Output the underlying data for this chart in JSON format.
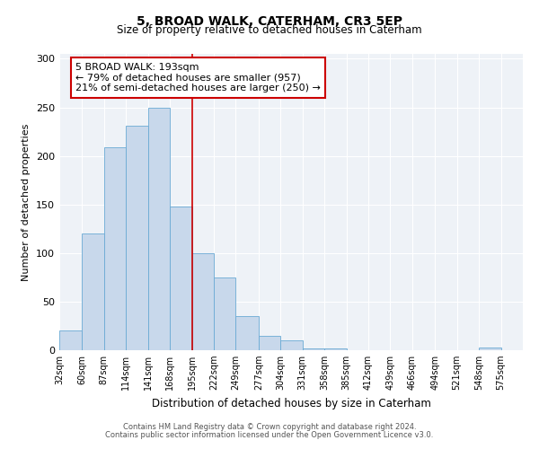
{
  "title": "5, BROAD WALK, CATERHAM, CR3 5EP",
  "subtitle": "Size of property relative to detached houses in Caterham",
  "xlabel": "Distribution of detached houses by size in Caterham",
  "ylabel": "Number of detached properties",
  "bin_labels": [
    "32sqm",
    "60sqm",
    "87sqm",
    "114sqm",
    "141sqm",
    "168sqm",
    "195sqm",
    "222sqm",
    "249sqm",
    "277sqm",
    "304sqm",
    "331sqm",
    "358sqm",
    "385sqm",
    "412sqm",
    "439sqm",
    "466sqm",
    "494sqm",
    "521sqm",
    "548sqm",
    "575sqm"
  ],
  "bin_edges": [
    32,
    60,
    87,
    114,
    141,
    168,
    195,
    222,
    249,
    277,
    304,
    331,
    358,
    385,
    412,
    439,
    466,
    494,
    521,
    548,
    575
  ],
  "bar_heights": [
    20,
    120,
    209,
    231,
    250,
    148,
    100,
    75,
    35,
    15,
    10,
    2,
    2,
    0,
    0,
    0,
    0,
    0,
    0,
    3,
    0
  ],
  "bar_color": "#c8d8eb",
  "bar_edge_color": "#6aaad4",
  "vline_x": 195,
  "vline_color": "#cc0000",
  "annotation_title": "5 BROAD WALK: 193sqm",
  "annotation_line1": "← 79% of detached houses are smaller (957)",
  "annotation_line2": "21% of semi-detached houses are larger (250) →",
  "annotation_box_color": "#cc0000",
  "ylim": [
    0,
    305
  ],
  "yticks": [
    0,
    50,
    100,
    150,
    200,
    250,
    300
  ],
  "footer1": "Contains HM Land Registry data © Crown copyright and database right 2024.",
  "footer2": "Contains public sector information licensed under the Open Government Licence v3.0.",
  "bg_color": "#eef2f7",
  "grid_color": "#ffffff",
  "title_fontsize": 10,
  "subtitle_fontsize": 8.5,
  "ylabel_fontsize": 8,
  "xlabel_fontsize": 8.5,
  "tick_fontsize": 7,
  "ytick_fontsize": 8,
  "ann_fontsize": 8,
  "footer_fontsize": 6
}
